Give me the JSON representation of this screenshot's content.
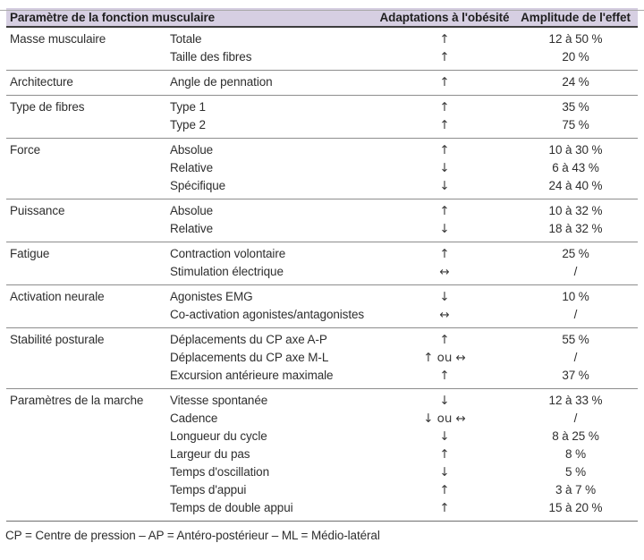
{
  "header": {
    "parameter": "Paramètre de la fonction musculaire",
    "adaptation": "Adaptations à l'obésité",
    "amplitude": "Amplitude de l'effet"
  },
  "arrow_glyphs": {
    "up": "↑",
    "down": "↓",
    "both": "↔",
    "up-or-both": "↑ ou ↔",
    "down-or-both": "↓ ou ↔"
  },
  "sections": [
    {
      "category": "Masse musculaire",
      "rows": [
        {
          "param": "Totale",
          "direction": "up",
          "arrow": "↑",
          "amplitude": "12 à 50 %"
        },
        {
          "param": "Taille des fibres",
          "direction": "up",
          "arrow": "↑",
          "amplitude": "20 %"
        }
      ]
    },
    {
      "category": "Architecture",
      "rows": [
        {
          "param": "Angle de pennation",
          "direction": "up",
          "arrow": "↑",
          "amplitude": "24 %"
        }
      ]
    },
    {
      "category": "Type de fibres",
      "rows": [
        {
          "param": "Type 1",
          "direction": "up",
          "arrow": "↑",
          "amplitude": "35 %"
        },
        {
          "param": "Type 2",
          "direction": "up",
          "arrow": "↑",
          "amplitude": "75 %"
        }
      ]
    },
    {
      "category": "Force",
      "rows": [
        {
          "param": "Absolue",
          "direction": "up",
          "arrow": "↑",
          "amplitude": "10 à 30 %"
        },
        {
          "param": "Relative",
          "direction": "down",
          "arrow": "↓",
          "amplitude": "6 à 43 %"
        },
        {
          "param": "Spécifique",
          "direction": "down",
          "arrow": "↓",
          "amplitude": "24 à 40 %"
        }
      ]
    },
    {
      "category": "Puissance",
      "rows": [
        {
          "param": "Absolue",
          "direction": "up",
          "arrow": "↑",
          "amplitude": "10 à 32 %"
        },
        {
          "param": "Relative",
          "direction": "down",
          "arrow": "↓",
          "amplitude": "18 à 32 %"
        }
      ]
    },
    {
      "category": "Fatigue",
      "rows": [
        {
          "param": "Contraction volontaire",
          "direction": "up",
          "arrow": "↑",
          "amplitude": "25 %"
        },
        {
          "param": "Stimulation électrique",
          "direction": "both",
          "arrow": "↔",
          "amplitude": "/"
        }
      ]
    },
    {
      "category": "Activation neurale",
      "rows": [
        {
          "param": "Agonistes EMG",
          "direction": "down",
          "arrow": "↓",
          "amplitude": "10 %"
        },
        {
          "param": "Co-activation agonistes/antagonistes",
          "direction": "both",
          "arrow": "↔",
          "amplitude": "/"
        }
      ]
    },
    {
      "category": "Stabilité posturale",
      "rows": [
        {
          "param": "Déplacements du CP axe A-P",
          "direction": "up",
          "arrow": "↑",
          "amplitude": "55 %"
        },
        {
          "param": "Déplacements du CP axe M-L",
          "direction": "up-or-both",
          "arrow": "↑ ou ↔",
          "amplitude": "/"
        },
        {
          "param": "Excursion antérieure maximale",
          "direction": "up",
          "arrow": "↑",
          "amplitude": "37 %"
        }
      ]
    },
    {
      "category": "Paramètres de la marche",
      "rows": [
        {
          "param": "Vitesse spontanée",
          "direction": "down",
          "arrow": "↓",
          "amplitude": "12 à 33 %"
        },
        {
          "param": "Cadence",
          "direction": "down-or-both",
          "arrow": "↓ ou ↔",
          "amplitude": "/"
        },
        {
          "param": "Longueur du cycle",
          "direction": "down",
          "arrow": "↓",
          "amplitude": "8 à 25 %"
        },
        {
          "param": "Largeur du pas",
          "direction": "up",
          "arrow": "↑",
          "amplitude": "8 %"
        },
        {
          "param": "Temps d'oscillation",
          "direction": "down",
          "arrow": "↓",
          "amplitude": "5 %"
        },
        {
          "param": "Temps d'appui",
          "direction": "up",
          "arrow": "↑",
          "amplitude": "3 à 7 %"
        },
        {
          "param": "Temps de double appui",
          "direction": "up",
          "arrow": "↑",
          "amplitude": "15 à 20 %"
        }
      ]
    }
  ],
  "footnote": "CP = Centre de pression – AP = Antéro-postérieur – ML = Médio-latéral",
  "colors": {
    "header_bg": "#d6cfe2",
    "rule_dark": "#3d3d3d",
    "rule_gray": "#8d8d8d",
    "rule_bottom": "#6f6f6f",
    "rule_top": "#a8a8a8",
    "text": "#2e2e2e"
  }
}
